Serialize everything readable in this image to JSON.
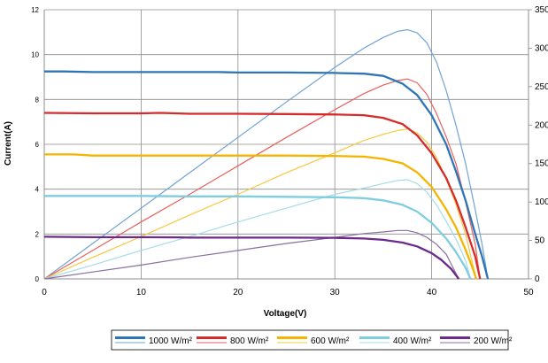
{
  "chart_data": {
    "type": "line",
    "title": "",
    "xlabel": "Voltage(V)",
    "ylabel": "Current(A)",
    "y2label": "",
    "xlim": [
      0,
      50
    ],
    "ylim": [
      0,
      12
    ],
    "y2lim": [
      0,
      350
    ],
    "x_ticks": [
      0,
      10,
      20,
      30,
      40,
      50
    ],
    "y_ticks": [
      0,
      2,
      4,
      6,
      8,
      10,
      12
    ],
    "y2_ticks": [
      0,
      50,
      100,
      150,
      200,
      250,
      300,
      350
    ],
    "x_tick_labels": [
      "0",
      "10",
      "20",
      "30",
      "40",
      "50"
    ],
    "y_tick_labels": [
      "0",
      "2",
      "4",
      "6",
      "8",
      "10",
      "12"
    ],
    "y2_tick_labels": [
      "0",
      "50",
      "100",
      "150",
      "200",
      "250",
      "300",
      "350"
    ],
    "grid": true,
    "legend_position": "bottom",
    "legend_entries": [
      "1000 W/m²",
      "800 W/m²",
      "600 W/m²",
      "400 W/m²",
      "200 W/m²"
    ],
    "series": [
      {
        "name": "1000 W/m²",
        "color": "#2e75b6",
        "power_color": "#6fa3d6",
        "iv_curve": [
          [
            0,
            9.25
          ],
          [
            2,
            9.25
          ],
          [
            5,
            9.22
          ],
          [
            10,
            9.22
          ],
          [
            15,
            9.22
          ],
          [
            18,
            9.22
          ],
          [
            20,
            9.2
          ],
          [
            25,
            9.2
          ],
          [
            30,
            9.18
          ],
          [
            33,
            9.15
          ],
          [
            35,
            9.05
          ],
          [
            37,
            8.7
          ],
          [
            38.5,
            8.2
          ],
          [
            40,
            7.3
          ],
          [
            41.5,
            6.0
          ],
          [
            42.5,
            4.8
          ],
          [
            43.5,
            3.5
          ],
          [
            44.5,
            2.0
          ],
          [
            45.2,
            1.0
          ],
          [
            45.8,
            0
          ]
        ],
        "power_curve": [
          [
            0,
            0
          ],
          [
            5,
            46
          ],
          [
            10,
            92
          ],
          [
            15,
            138
          ],
          [
            20,
            184
          ],
          [
            25,
            230
          ],
          [
            30,
            275
          ],
          [
            33,
            300
          ],
          [
            35,
            314
          ],
          [
            36.5,
            322
          ],
          [
            37.5,
            324
          ],
          [
            38.5,
            320
          ],
          [
            39.5,
            307
          ],
          [
            40.5,
            282
          ],
          [
            41.5,
            245
          ],
          [
            42.5,
            200
          ],
          [
            43.5,
            150
          ],
          [
            44.5,
            90
          ],
          [
            45.2,
            45
          ],
          [
            45.8,
            0
          ]
        ]
      },
      {
        "name": "800 W/m²",
        "color": "#d62b2b",
        "power_color": "#e8605c",
        "iv_curve": [
          [
            0,
            7.4
          ],
          [
            5,
            7.38
          ],
          [
            10,
            7.38
          ],
          [
            12,
            7.4
          ],
          [
            15,
            7.36
          ],
          [
            20,
            7.36
          ],
          [
            25,
            7.35
          ],
          [
            30,
            7.33
          ],
          [
            33,
            7.3
          ],
          [
            35,
            7.18
          ],
          [
            37,
            6.9
          ],
          [
            38.5,
            6.4
          ],
          [
            40,
            5.6
          ],
          [
            41.5,
            4.5
          ],
          [
            42.5,
            3.5
          ],
          [
            43.5,
            2.3
          ],
          [
            44.5,
            1.0
          ],
          [
            45,
            0
          ]
        ],
        "power_curve": [
          [
            0,
            0
          ],
          [
            5,
            37
          ],
          [
            10,
            74
          ],
          [
            15,
            110
          ],
          [
            20,
            147
          ],
          [
            25,
            184
          ],
          [
            30,
            220
          ],
          [
            33,
            241
          ],
          [
            35,
            252
          ],
          [
            36.5,
            258
          ],
          [
            37.5,
            260
          ],
          [
            38.5,
            255
          ],
          [
            39.5,
            240
          ],
          [
            40.5,
            215
          ],
          [
            41.5,
            185
          ],
          [
            42.5,
            150
          ],
          [
            43.5,
            100
          ],
          [
            44.5,
            45
          ],
          [
            45,
            0
          ]
        ]
      },
      {
        "name": "600 W/m²",
        "color": "#f5b400",
        "power_color": "#f7c842",
        "iv_curve": [
          [
            0,
            5.55
          ],
          [
            3,
            5.55
          ],
          [
            5,
            5.5
          ],
          [
            10,
            5.5
          ],
          [
            15,
            5.5
          ],
          [
            20,
            5.5
          ],
          [
            25,
            5.5
          ],
          [
            30,
            5.48
          ],
          [
            33,
            5.45
          ],
          [
            35,
            5.35
          ],
          [
            37,
            5.15
          ],
          [
            38.5,
            4.75
          ],
          [
            40,
            4.1
          ],
          [
            41.5,
            3.1
          ],
          [
            42.5,
            2.3
          ],
          [
            43.5,
            1.3
          ],
          [
            44.3,
            0.4
          ],
          [
            44.6,
            0
          ]
        ],
        "power_curve": [
          [
            0,
            0
          ],
          [
            5,
            28
          ],
          [
            10,
            55
          ],
          [
            15,
            83
          ],
          [
            20,
            110
          ],
          [
            25,
            138
          ],
          [
            30,
            164
          ],
          [
            33,
            180
          ],
          [
            35,
            188
          ],
          [
            36.5,
            193
          ],
          [
            37.5,
            195
          ],
          [
            38.5,
            190
          ],
          [
            39.5,
            178
          ],
          [
            40.5,
            158
          ],
          [
            41.5,
            130
          ],
          [
            42.5,
            97
          ],
          [
            43.5,
            58
          ],
          [
            44.6,
            0
          ]
        ]
      },
      {
        "name": "400 W/m²",
        "color": "#7fcde0",
        "power_color": "#a6dcea",
        "iv_curve": [
          [
            0,
            3.7
          ],
          [
            5,
            3.7
          ],
          [
            10,
            3.7
          ],
          [
            15,
            3.68
          ],
          [
            20,
            3.68
          ],
          [
            25,
            3.66
          ],
          [
            30,
            3.64
          ],
          [
            33,
            3.6
          ],
          [
            35,
            3.5
          ],
          [
            37,
            3.3
          ],
          [
            38.5,
            3.0
          ],
          [
            40,
            2.5
          ],
          [
            41.5,
            1.8
          ],
          [
            42.5,
            1.2
          ],
          [
            43.5,
            0.5
          ],
          [
            44,
            0
          ]
        ],
        "power_curve": [
          [
            0,
            0
          ],
          [
            5,
            18
          ],
          [
            10,
            37
          ],
          [
            15,
            55
          ],
          [
            20,
            74
          ],
          [
            25,
            92
          ],
          [
            30,
            110
          ],
          [
            33,
            118
          ],
          [
            35,
            124
          ],
          [
            36.5,
            128
          ],
          [
            37.5,
            129
          ],
          [
            38.5,
            124
          ],
          [
            39.5,
            113
          ],
          [
            40.5,
            96
          ],
          [
            41.5,
            75
          ],
          [
            42.5,
            52
          ],
          [
            43.5,
            24
          ],
          [
            44,
            0
          ]
        ]
      },
      {
        "name": "200 W/m²",
        "color": "#6b2a8c",
        "power_color": "#8a6fa0",
        "iv_curve": [
          [
            0,
            1.88
          ],
          [
            5,
            1.86
          ],
          [
            10,
            1.86
          ],
          [
            14,
            1.85
          ],
          [
            15,
            1.84
          ],
          [
            20,
            1.84
          ],
          [
            25,
            1.84
          ],
          [
            30,
            1.83
          ],
          [
            33,
            1.8
          ],
          [
            35,
            1.74
          ],
          [
            37,
            1.62
          ],
          [
            38.5,
            1.45
          ],
          [
            40,
            1.15
          ],
          [
            41,
            0.85
          ],
          [
            42,
            0.45
          ],
          [
            42.8,
            0
          ]
        ],
        "power_curve": [
          [
            0,
            0
          ],
          [
            5,
            9
          ],
          [
            10,
            18
          ],
          [
            15,
            28
          ],
          [
            20,
            37
          ],
          [
            25,
            46
          ],
          [
            30,
            54
          ],
          [
            33,
            59
          ],
          [
            35,
            61
          ],
          [
            36.5,
            63
          ],
          [
            37.5,
            63
          ],
          [
            38.5,
            60
          ],
          [
            39.5,
            54
          ],
          [
            40.5,
            45
          ],
          [
            41.5,
            32
          ],
          [
            42.8,
            0
          ]
        ]
      }
    ]
  }
}
